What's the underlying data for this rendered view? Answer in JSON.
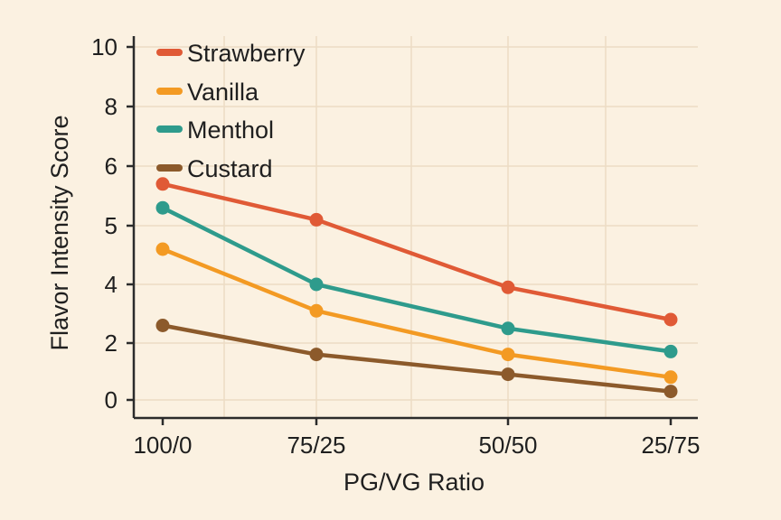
{
  "chart_data": {
    "type": "line",
    "title": "",
    "xlabel": "PG/VG Ratio",
    "ylabel": "Flavor Intensity Score",
    "categories": [
      "100/0",
      "75/25",
      "50/50",
      "25/75"
    ],
    "y_ticks": [
      "0",
      "2",
      "4",
      "5",
      "6",
      "8",
      "10"
    ],
    "grid": true,
    "legend_position": "top-left",
    "series": [
      {
        "name": "Strawberry",
        "color": "#e05a36",
        "values": [
          5.7,
          5.1,
          3.9,
          2.8
        ]
      },
      {
        "name": "Vanilla",
        "color": "#f39a23",
        "values": [
          4.6,
          3.1,
          1.6,
          0.8
        ]
      },
      {
        "name": "Menthol",
        "color": "#2e9b8c",
        "values": [
          5.3,
          4.0,
          2.5,
          1.7
        ]
      },
      {
        "name": "Custard",
        "color": "#8c5a2b",
        "values": [
          2.6,
          1.6,
          0.9,
          0.3
        ]
      }
    ]
  }
}
